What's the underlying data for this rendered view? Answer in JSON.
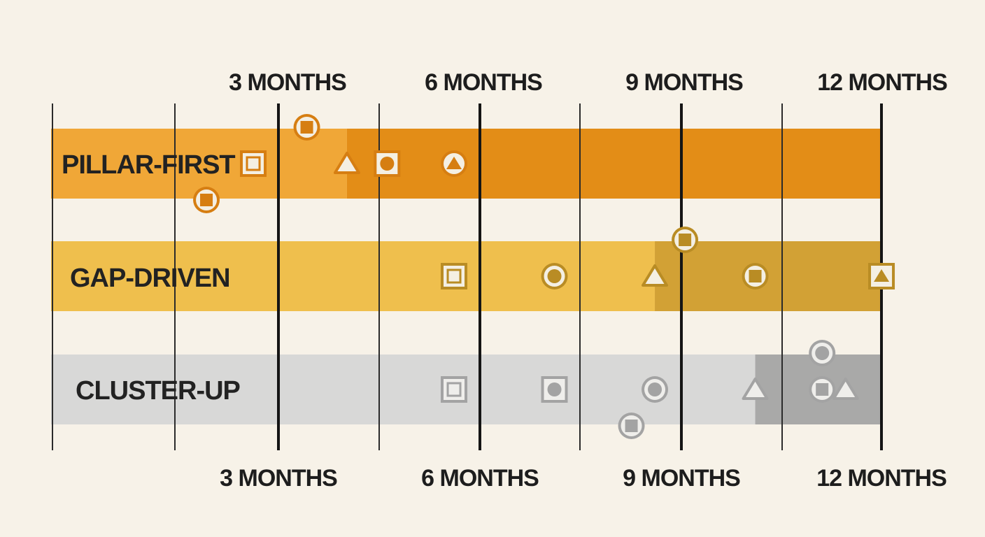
{
  "timeline": {
    "top_labels": [
      "3 MONTHS",
      "6 MONTHS",
      "9 MONTHS",
      "12 MONTHS"
    ],
    "bottom_labels": [
      "3 MONTHS",
      "6 MONTHS",
      "9 MONTHS",
      "12 MONTHS"
    ]
  },
  "rows": [
    {
      "label": "PILLAR-FIRST",
      "colors": {
        "bar": "#f0a737",
        "bar_dark": "#e38d17",
        "marker": "#d67e12",
        "marker_fill": "#f4efe3"
      },
      "split_month": 4.4,
      "markers": [
        {
          "shape": "circle-square",
          "month": 3.8,
          "lane": "above"
        },
        {
          "shape": "square-square",
          "month": 3.0,
          "lane": "center"
        },
        {
          "shape": "triangle",
          "month": 4.4,
          "lane": "center"
        },
        {
          "shape": "square-circle",
          "month": 5.0,
          "lane": "center"
        },
        {
          "shape": "circle-triangle",
          "month": 6.0,
          "lane": "center"
        },
        {
          "shape": "circle-square",
          "month": 2.3,
          "lane": "below"
        }
      ]
    },
    {
      "label": "GAP-DRIVEN",
      "colors": {
        "bar": "#efbf4d",
        "bar_dark": "#d2a135",
        "marker": "#b98c24",
        "marker_fill": "#f4efe3"
      },
      "split_month": 9.0,
      "markers": [
        {
          "shape": "square-square",
          "month": 6.0,
          "lane": "center"
        },
        {
          "shape": "circle-circle",
          "month": 7.5,
          "lane": "center"
        },
        {
          "shape": "triangle",
          "month": 9.0,
          "lane": "center"
        },
        {
          "shape": "circle-square",
          "month": 9.45,
          "lane": "above"
        },
        {
          "shape": "circle-square",
          "month": 10.5,
          "lane": "center"
        },
        {
          "shape": "square-triangle",
          "month": 12.0,
          "lane": "center"
        }
      ]
    },
    {
      "label": "CLUSTER-UP",
      "colors": {
        "bar": "#d8d8d7",
        "bar_dark": "#a9a9a8",
        "marker": "#a3a3a3",
        "marker_fill": "#efeeeb"
      },
      "split_month": 10.5,
      "markers": [
        {
          "shape": "square-square",
          "month": 6.0,
          "lane": "center"
        },
        {
          "shape": "square-circle",
          "month": 7.5,
          "lane": "center"
        },
        {
          "shape": "circle-circle",
          "month": 9.0,
          "lane": "center"
        },
        {
          "shape": "circle-square",
          "month": 8.65,
          "lane": "below"
        },
        {
          "shape": "triangle",
          "month": 10.5,
          "lane": "center"
        },
        {
          "shape": "circle-circle",
          "month": 11.5,
          "lane": "above"
        },
        {
          "shape": "circle-square",
          "month": 11.5,
          "lane": "center"
        },
        {
          "shape": "triangle",
          "month": 11.85,
          "lane": "center"
        }
      ]
    }
  ]
}
